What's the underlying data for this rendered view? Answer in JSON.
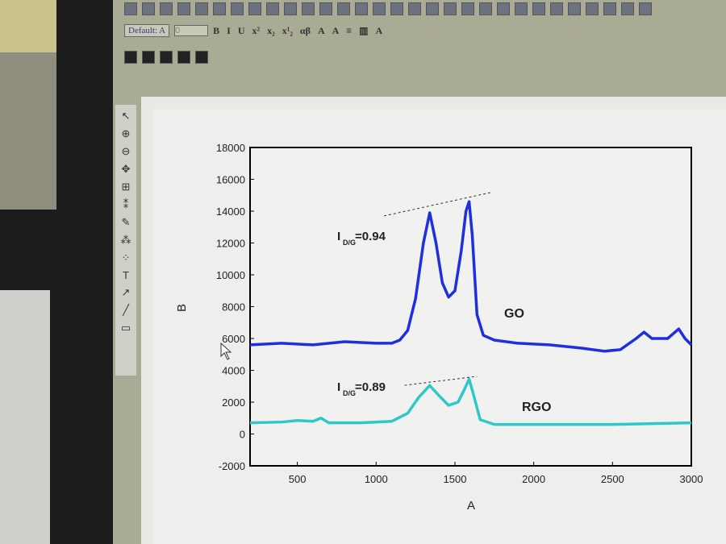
{
  "toolbar": {
    "font_name": "Default: A",
    "font_size": "0",
    "format_buttons": [
      "B",
      "I",
      "U",
      "x²",
      "x₂",
      "x¹₂",
      "αβ",
      "A",
      "A",
      "≡",
      "▥",
      "A"
    ]
  },
  "tools": [
    "↖",
    "⊕",
    "⊖",
    "✥",
    "⊞",
    "⁑",
    "✎",
    "⁂",
    "⁘",
    "T",
    "↗",
    "╱",
    "▭"
  ],
  "colors": {
    "go": "#1f2fe0",
    "rgo": "#2ec8c8",
    "frame": "#000000",
    "background": "#eeeeec"
  },
  "chart_data": {
    "type": "line",
    "xlabel": "A",
    "ylabel": "B",
    "xlim": [
      200,
      3000
    ],
    "ylim": [
      -2000,
      18000
    ],
    "xticks": [
      500,
      1000,
      1500,
      2000,
      2500,
      3000
    ],
    "yticks": [
      -2000,
      0,
      2000,
      4000,
      6000,
      8000,
      10000,
      12000,
      14000,
      16000,
      18000
    ],
    "grid": false,
    "series": [
      {
        "name": "GO",
        "color": "#1f2fe0",
        "points": [
          [
            200,
            5600
          ],
          [
            400,
            5700
          ],
          [
            600,
            5600
          ],
          [
            800,
            5800
          ],
          [
            1000,
            5700
          ],
          [
            1100,
            5700
          ],
          [
            1150,
            5900
          ],
          [
            1200,
            6500
          ],
          [
            1250,
            8500
          ],
          [
            1300,
            12000
          ],
          [
            1340,
            13900
          ],
          [
            1380,
            12000
          ],
          [
            1420,
            9500
          ],
          [
            1460,
            8600
          ],
          [
            1500,
            9000
          ],
          [
            1540,
            11500
          ],
          [
            1570,
            14000
          ],
          [
            1590,
            14600
          ],
          [
            1610,
            12500
          ],
          [
            1640,
            7500
          ],
          [
            1680,
            6200
          ],
          [
            1750,
            5900
          ],
          [
            1900,
            5700
          ],
          [
            2100,
            5600
          ],
          [
            2300,
            5400
          ],
          [
            2450,
            5200
          ],
          [
            2550,
            5300
          ],
          [
            2650,
            6000
          ],
          [
            2700,
            6400
          ],
          [
            2750,
            6000
          ],
          [
            2850,
            6000
          ],
          [
            2920,
            6600
          ],
          [
            2960,
            6000
          ],
          [
            3000,
            5600
          ]
        ]
      },
      {
        "name": "RGO",
        "color": "#2ec8c8",
        "points": [
          [
            200,
            700
          ],
          [
            400,
            750
          ],
          [
            500,
            850
          ],
          [
            600,
            800
          ],
          [
            650,
            1000
          ],
          [
            700,
            700
          ],
          [
            900,
            700
          ],
          [
            1100,
            800
          ],
          [
            1200,
            1300
          ],
          [
            1270,
            2300
          ],
          [
            1340,
            3050
          ],
          [
            1400,
            2400
          ],
          [
            1460,
            1800
          ],
          [
            1520,
            2000
          ],
          [
            1560,
            2800
          ],
          [
            1590,
            3450
          ],
          [
            1620,
            2400
          ],
          [
            1660,
            900
          ],
          [
            1750,
            600
          ],
          [
            2000,
            600
          ],
          [
            2500,
            600
          ],
          [
            3000,
            700
          ]
        ]
      }
    ],
    "annotations": [
      {
        "text_main": "I",
        "text_sub": "D/G",
        "text_value": "=0.94",
        "series": "GO"
      },
      {
        "text_main": "I",
        "text_sub": "D/G",
        "text_value": "=0.89",
        "series": "RGO"
      }
    ],
    "dashed_lines": [
      [
        [
          1050,
          13700
        ],
        [
          1740,
          15200
        ]
      ],
      [
        [
          1180,
          3060
        ],
        [
          1640,
          3620
        ]
      ]
    ]
  }
}
